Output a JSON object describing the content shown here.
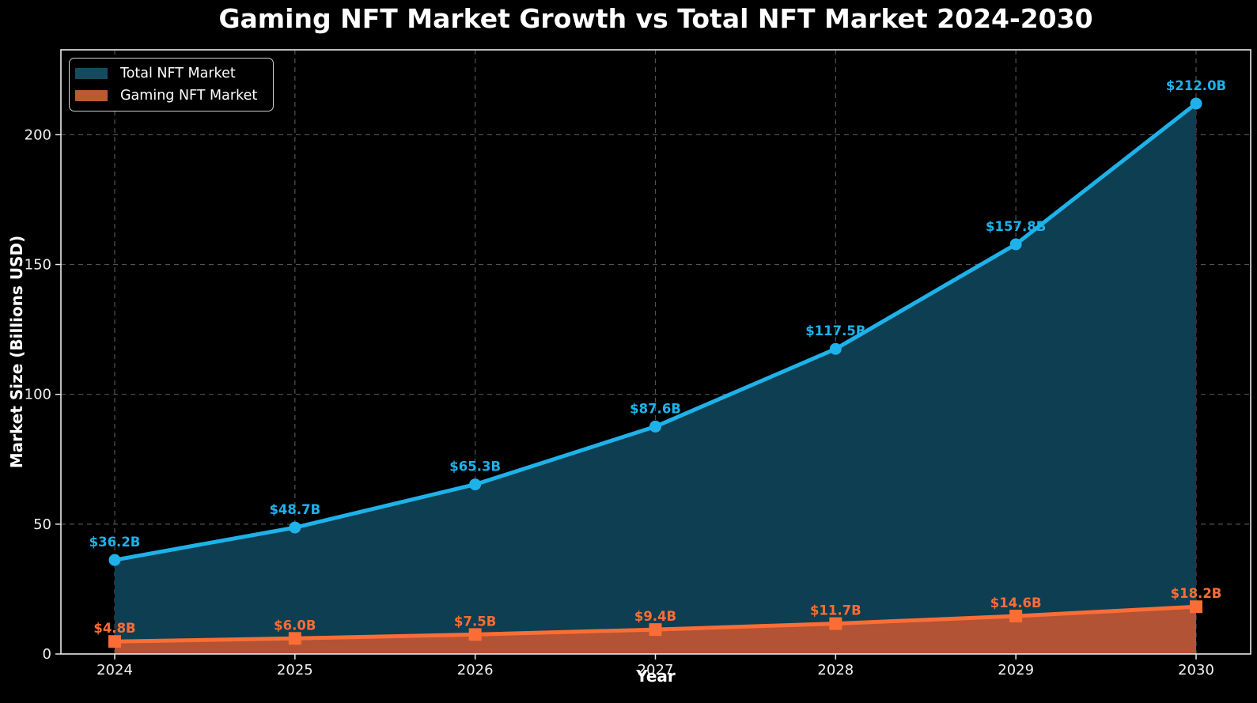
{
  "figure": {
    "title": "Gaming NFT Market Growth vs Total NFT Market 2024-2030",
    "background": "#000000"
  },
  "axes": {
    "xlabel": "Year",
    "ylabel": "Market Size (Billions USD)",
    "spine_color": "#e9e9e9",
    "grid_color": "#525252",
    "tick_label_color": "#f1f1f1"
  },
  "legend": {
    "position": "upper left",
    "items": [
      {
        "label": "Total NFT Market",
        "swatch_color": "#164a5e"
      },
      {
        "label": "Gaming NFT Market",
        "swatch_color": "#bb5a31"
      }
    ]
  },
  "chart_data": {
    "type": "area",
    "title": "Gaming NFT Market Growth vs Total NFT Market 2024-2030",
    "xlabel": "Year",
    "ylabel": "Market Size (Billions USD)",
    "x": [
      "2024",
      "2025",
      "2026",
      "2027",
      "2028",
      "2029",
      "2030"
    ],
    "series": [
      {
        "name": "Total NFT Market",
        "values": [
          36.2,
          48.7,
          65.3,
          87.6,
          117.5,
          157.8,
          212.0
        ],
        "point_labels": [
          "$36.2B",
          "$48.7B",
          "$65.3B",
          "$87.6B",
          "$117.5B",
          "$157.8B",
          "$212.0B"
        ],
        "line_color": "#1eb2ea",
        "fill_color": "#0d3e51",
        "marker": "circle"
      },
      {
        "name": "Gaming NFT Market",
        "values": [
          4.8,
          6.0,
          7.5,
          9.4,
          11.7,
          14.6,
          18.2
        ],
        "point_labels": [
          "$4.8B",
          "$6.0B",
          "$7.5B",
          "$9.4B",
          "$11.7B",
          "$14.6B",
          "$18.2B"
        ],
        "line_color": "#fc6d35",
        "fill_color": "#b15334",
        "marker": "square"
      }
    ],
    "ylim": [
      0,
      232.7
    ],
    "yticks": [
      0,
      50,
      100,
      150,
      200
    ],
    "grid": true,
    "grid_style": "dashed",
    "legend_position": "upper left"
  }
}
